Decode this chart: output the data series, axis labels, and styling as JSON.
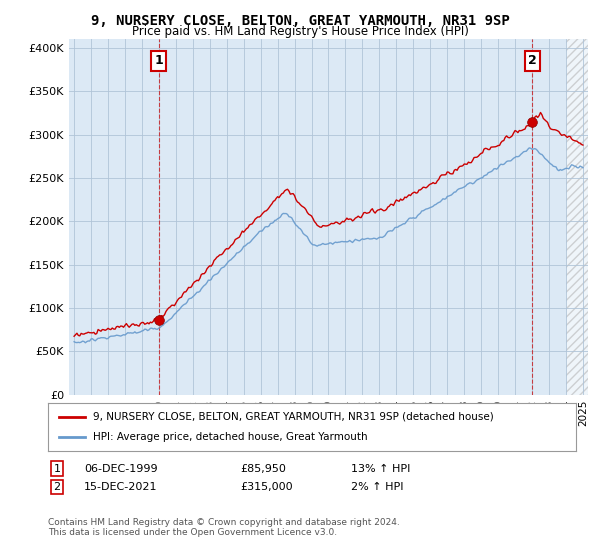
{
  "title": "9, NURSERY CLOSE, BELTON, GREAT YARMOUTH, NR31 9SP",
  "subtitle": "Price paid vs. HM Land Registry's House Price Index (HPI)",
  "yticks": [
    0,
    50000,
    100000,
    150000,
    200000,
    250000,
    300000,
    350000,
    400000
  ],
  "ytick_labels": [
    "£0",
    "£50K",
    "£100K",
    "£150K",
    "£200K",
    "£250K",
    "£300K",
    "£350K",
    "£400K"
  ],
  "xlim_start": 1994.7,
  "xlim_end": 2025.3,
  "ylim": [
    0,
    410000
  ],
  "point1_x": 2000.0,
  "point1_y": 85950,
  "point2_x": 2022.0,
  "point2_y": 315000,
  "hatch_start": 2024.0,
  "legend_line1": "9, NURSERY CLOSE, BELTON, GREAT YARMOUTH, NR31 9SP (detached house)",
  "legend_line2": "HPI: Average price, detached house, Great Yarmouth",
  "table_row1_num": "1",
  "table_row1_date": "06-DEC-1999",
  "table_row1_price": "£85,950",
  "table_row1_hpi": "13% ↑ HPI",
  "table_row2_num": "2",
  "table_row2_date": "15-DEC-2021",
  "table_row2_price": "£315,000",
  "table_row2_hpi": "2% ↑ HPI",
  "footer": "Contains HM Land Registry data © Crown copyright and database right 2024.\nThis data is licensed under the Open Government Licence v3.0.",
  "line_color_red": "#cc0000",
  "line_color_blue": "#6699cc",
  "plot_bg_color": "#dce9f5",
  "background_color": "#ffffff",
  "grid_color": "#b0c4d8"
}
